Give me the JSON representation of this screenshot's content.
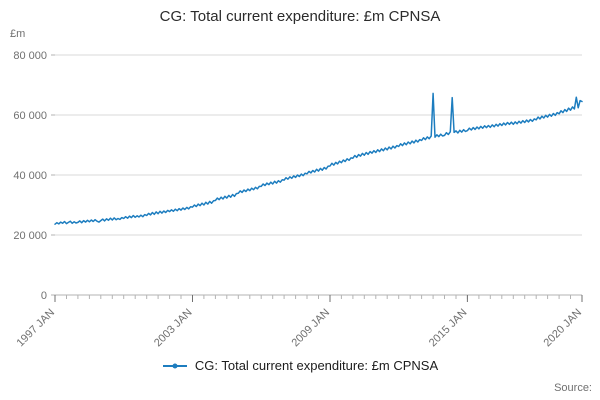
{
  "chart_data": {
    "type": "line",
    "title": "CG: Total current expenditure: £m CPNSA",
    "xlabel": "",
    "ylabel_unit": "£m",
    "ylim": [
      0,
      80000
    ],
    "grid": true,
    "legend_position": "bottom",
    "source_label": "Source:",
    "line_color": "#1d7dbf",
    "x_frequency": "monthly",
    "x_ticks": [
      {
        "label": "1997 JAN",
        "index": 0
      },
      {
        "label": "2003 JAN",
        "index": 72
      },
      {
        "label": "2009 JAN",
        "index": 144
      },
      {
        "label": "2015 JAN",
        "index": 216
      },
      {
        "label": "2020 JAN",
        "index": 276
      }
    ],
    "y_ticks": [
      {
        "label": "0",
        "value": 0
      },
      {
        "label": "20 000",
        "value": 20000
      },
      {
        "label": "40 000",
        "value": 40000
      },
      {
        "label": "60 000",
        "value": 60000
      },
      {
        "label": "80 000",
        "value": 80000
      }
    ],
    "series": [
      {
        "name": "CG: Total current expenditure: £m CPNSA",
        "color": "#1d7dbf",
        "values": [
          23600,
          24100,
          23700,
          24300,
          23900,
          24500,
          23800,
          24200,
          24600,
          23900,
          24400,
          24000,
          24200,
          24700,
          24100,
          24800,
          24300,
          24900,
          24400,
          25000,
          24500,
          25100,
          24600,
          24300,
          24800,
          25300,
          24700,
          25400,
          24900,
          25600,
          25000,
          25700,
          25100,
          25500,
          25200,
          25800,
          25500,
          26100,
          25600,
          26300,
          25800,
          26500,
          25900,
          26400,
          26000,
          26600,
          26100,
          26800,
          26500,
          27200,
          26700,
          27500,
          26900,
          27700,
          27100,
          27900,
          27300,
          28000,
          27500,
          28200,
          27800,
          28400,
          27900,
          28600,
          28100,
          28800,
          28300,
          29000,
          28500,
          29200,
          28700,
          29400,
          29300,
          30000,
          29500,
          30300,
          29800,
          30600,
          30000,
          30900,
          30300,
          31200,
          30600,
          31400,
          31500,
          32300,
          31800,
          32600,
          32000,
          32900,
          32300,
          33200,
          32600,
          33500,
          32900,
          33800,
          33900,
          34700,
          34200,
          35000,
          34500,
          35300,
          34800,
          35600,
          35100,
          35900,
          35400,
          36200,
          36200,
          37000,
          36500,
          37300,
          36800,
          37600,
          37000,
          37900,
          37300,
          38100,
          37600,
          38400,
          38300,
          39100,
          38600,
          39400,
          38900,
          39700,
          39200,
          40000,
          39500,
          40300,
          39800,
          40600,
          40400,
          41200,
          40700,
          41500,
          41000,
          41900,
          41300,
          42200,
          41600,
          42500,
          42000,
          42900,
          43000,
          43900,
          43300,
          44200,
          43700,
          44600,
          44100,
          45000,
          44500,
          45400,
          44900,
          45700,
          45600,
          46500,
          45900,
          46800,
          46300,
          47200,
          46600,
          47500,
          46900,
          47800,
          47300,
          48100,
          47500,
          48400,
          47800,
          48700,
          48100,
          49000,
          48400,
          49300,
          48700,
          49600,
          49000,
          49800,
          49500,
          50400,
          49800,
          50700,
          50100,
          51000,
          50400,
          51300,
          50700,
          51600,
          51000,
          51800,
          51500,
          52400,
          51800,
          52700,
          52100,
          53000,
          67200,
          52600,
          53400,
          52800,
          53600,
          53000,
          53200,
          54100,
          53500,
          54400,
          65800,
          54200,
          54700,
          54000,
          54900,
          54300,
          55100,
          54500,
          54800,
          55600,
          55000,
          55800,
          55200,
          56000,
          55400,
          56200,
          55600,
          56400,
          55800,
          56500,
          55900,
          56700,
          56100,
          56900,
          56300,
          57100,
          56500,
          57300,
          56700,
          57500,
          56900,
          57600,
          56900,
          57700,
          57100,
          57900,
          57300,
          58100,
          57500,
          58300,
          57700,
          58500,
          57900,
          58700,
          58400,
          59300,
          58700,
          59600,
          59000,
          59900,
          59300,
          60200,
          59600,
          60500,
          59900,
          60800,
          60400,
          61400,
          60800,
          61800,
          61200,
          62300,
          61600,
          62700,
          62000,
          65900,
          62400,
          64800,
          64500
        ]
      }
    ]
  }
}
